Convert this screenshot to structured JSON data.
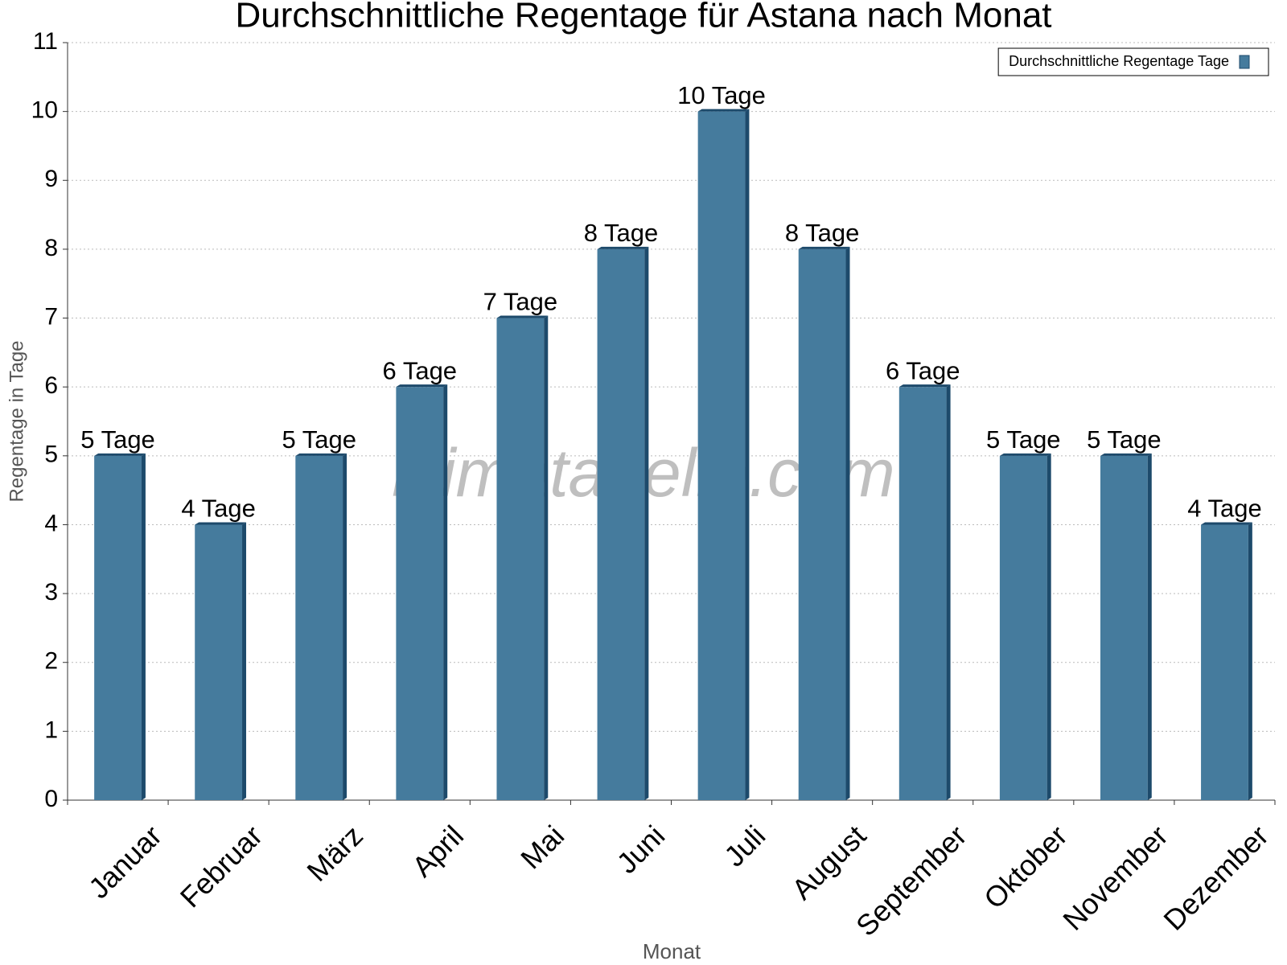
{
  "chart_data": {
    "type": "bar",
    "title": "Durchschnittliche Regentage für Astana nach Monat",
    "x_label": "Monat",
    "y_label": "Regentage in Tage",
    "watermark": "klimatabelle.com",
    "categories": [
      "Januar",
      "Februar",
      "März",
      "April",
      "Mai",
      "Juni",
      "Juli",
      "August",
      "September",
      "Oktober",
      "November",
      "Dezember"
    ],
    "series": [
      {
        "name": "Durchschnittliche Regentage Tage",
        "color": "#457b9d",
        "values": [
          5,
          4,
          5,
          6,
          7,
          8,
          10,
          8,
          6,
          5,
          5,
          4
        ],
        "value_labels": [
          "5 Tage",
          "4 Tage",
          "5 Tage",
          "6 Tage",
          "7 Tage",
          "8 Tage",
          "10 Tage",
          "8 Tage",
          "6 Tage",
          "5 Tage",
          "5 Tage",
          "4 Tage"
        ]
      }
    ],
    "ylim": [
      0,
      11
    ],
    "yticks": [
      0,
      1,
      2,
      3,
      4,
      5,
      6,
      7,
      8,
      9,
      10,
      11
    ],
    "grid": true,
    "legend": "top-right"
  }
}
